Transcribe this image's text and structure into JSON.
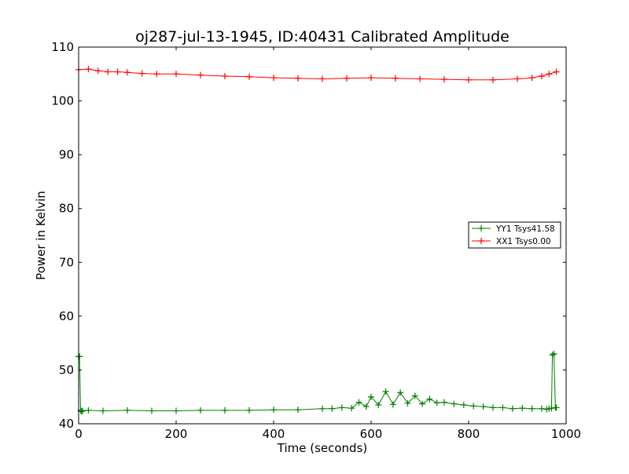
{
  "chart_data": {
    "type": "line",
    "title": "oj287-jul-13-1945, ID:40431 Calibrated Amplitude",
    "xlabel": "Time (seconds)",
    "ylabel": "Power in Kelvin",
    "xlim": [
      0,
      1000
    ],
    "ylim": [
      40,
      110
    ],
    "xticks": [
      0,
      200,
      400,
      600,
      800,
      1000
    ],
    "yticks": [
      40,
      50,
      60,
      70,
      80,
      90,
      100,
      110
    ],
    "grid": false,
    "legend_position": "right",
    "marker": "+",
    "series": [
      {
        "name": "YY1 Tsys41.58",
        "color": "#008000",
        "x": [
          0,
          2,
          4,
          6,
          8,
          20,
          50,
          100,
          150,
          200,
          250,
          300,
          350,
          400,
          450,
          500,
          520,
          540,
          560,
          575,
          590,
          600,
          615,
          630,
          645,
          660,
          675,
          690,
          705,
          720,
          735,
          750,
          770,
          790,
          810,
          830,
          850,
          870,
          890,
          910,
          930,
          950,
          960,
          965,
          970,
          972,
          975,
          978,
          980
        ],
        "y": [
          52.5,
          52.5,
          42.5,
          42.3,
          42.4,
          42.5,
          42.4,
          42.5,
          42.4,
          42.4,
          42.5,
          42.5,
          42.5,
          42.6,
          42.6,
          42.8,
          42.8,
          43.0,
          42.9,
          44.0,
          43.2,
          45.0,
          43.5,
          46.0,
          43.6,
          45.8,
          43.8,
          45.2,
          43.7,
          44.6,
          43.9,
          44.0,
          43.7,
          43.5,
          43.3,
          43.2,
          43.0,
          43.0,
          42.8,
          42.9,
          42.8,
          42.8,
          42.7,
          42.8,
          42.9,
          52.8,
          53.0,
          43.0,
          43.0
        ]
      },
      {
        "name": "XX1 Tsys0.00",
        "color": "#ff0000",
        "x": [
          0,
          20,
          40,
          60,
          80,
          100,
          130,
          160,
          200,
          250,
          300,
          350,
          400,
          450,
          500,
          550,
          600,
          650,
          700,
          750,
          800,
          850,
          900,
          930,
          950,
          965,
          980
        ],
        "y": [
          105.8,
          105.9,
          105.6,
          105.4,
          105.4,
          105.3,
          105.1,
          105.0,
          105.0,
          104.8,
          104.6,
          104.5,
          104.3,
          104.2,
          104.1,
          104.2,
          104.3,
          104.2,
          104.1,
          104.0,
          103.9,
          103.9,
          104.1,
          104.3,
          104.6,
          105.0,
          105.4
        ]
      }
    ]
  }
}
